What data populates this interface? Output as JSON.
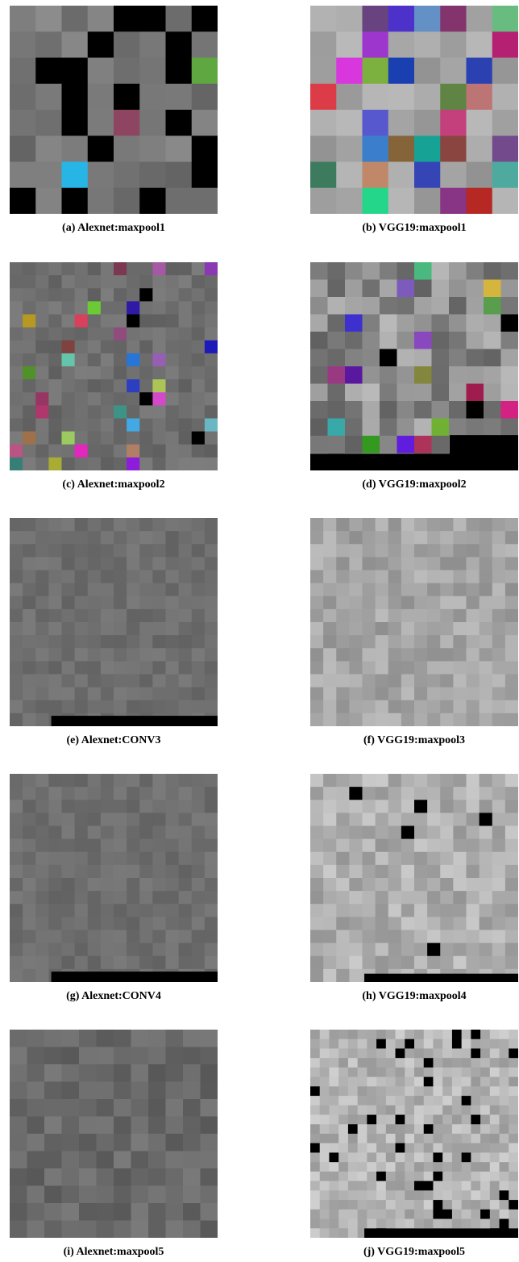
{
  "figures": [
    {
      "caption": "(a) Alexnet:maxpool1"
    },
    {
      "caption": "(b) VGG19:maxpool1"
    },
    {
      "caption": "(c) Alexnet:maxpool2"
    },
    {
      "caption": "(d) VGG19:maxpool2"
    },
    {
      "caption": "(e) Alexnet:CONV3"
    },
    {
      "caption": "(f) VGG19:maxpool3"
    },
    {
      "caption": "(g) Alexnet:CONV4"
    },
    {
      "caption": "(h) VGG19:maxpool4"
    },
    {
      "caption": "(i) Alexnet:maxpool5"
    },
    {
      "caption": "(j) VGG19:maxpool5"
    }
  ]
}
